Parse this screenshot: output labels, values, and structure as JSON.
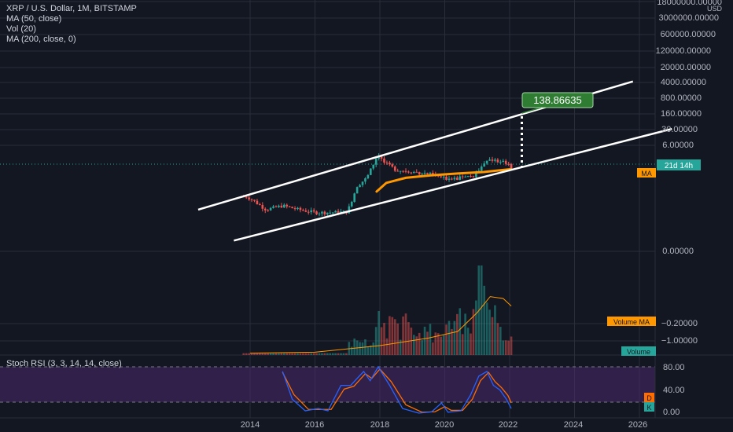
{
  "header": {
    "symbol": "XRP / U.S. Dollar, 1M, BITSTAMP",
    "indicators": [
      "MA (50, close)",
      "Vol (20)",
      "MA (200, close, 0)"
    ]
  },
  "price_axis": {
    "unit": "USD",
    "ticks": [
      "18000000.00000",
      "3000000.00000",
      "600000.00000",
      "120000.00000",
      "20000.00000",
      "4000.00000",
      "800.00000",
      "160.00000",
      "30.00000",
      "6.00000"
    ],
    "countdown": "21d 14h",
    "ma_tag": "MA"
  },
  "volume_axis": {
    "ticks": [
      "0.00000",
      "−0.20000",
      "−1.00000"
    ],
    "ma_tag": "Volume MA",
    "vol_tag": "Volume"
  },
  "stoch_panel": {
    "title": "Stoch RSI (3, 3, 14, 14, close)",
    "ticks": [
      "80.00",
      "40.00",
      "0.00"
    ],
    "d_tag": "D",
    "k_tag": "K"
  },
  "time_axis": {
    "ticks": [
      "2014",
      "2016",
      "2018",
      "2020",
      "2022",
      "2024",
      "2026"
    ]
  },
  "target_label": "138.86635",
  "colors": {
    "background": "#131722",
    "grid": "#2a2e39",
    "up_candle": "#26a69a",
    "down_candle": "#ef5350",
    "ma50": "#ff9800",
    "target_label_bg": "#2e7d32",
    "stoch_band": "#4a2a6b",
    "k_line": "#2962ff",
    "d_line": "#ff6d00"
  },
  "chart_data": {
    "type": "candlestick",
    "symbol": "XRP / U.S. Dollar",
    "interval": "1M",
    "exchange": "BITSTAMP",
    "y_scale": "log",
    "x_range": [
      2012.0,
      2027.0
    ],
    "last_price": 0.6,
    "price_series": [
      {
        "t": 2013.9,
        "close": 0.03
      },
      {
        "t": 2014.0,
        "close": 0.025
      },
      {
        "t": 2014.5,
        "close": 0.008
      },
      {
        "t": 2015.0,
        "close": 0.012
      },
      {
        "t": 2015.5,
        "close": 0.008
      },
      {
        "t": 2016.0,
        "close": 0.006
      },
      {
        "t": 2016.5,
        "close": 0.006
      },
      {
        "t": 2017.0,
        "close": 0.0065
      },
      {
        "t": 2017.3,
        "close": 0.09
      },
      {
        "t": 2017.6,
        "close": 0.2
      },
      {
        "t": 2017.95,
        "close": 2.3
      },
      {
        "t": 2018.1,
        "close": 1.0
      },
      {
        "t": 2018.5,
        "close": 0.45
      },
      {
        "t": 2019.0,
        "close": 0.37
      },
      {
        "t": 2019.5,
        "close": 0.3
      },
      {
        "t": 2020.0,
        "close": 0.19
      },
      {
        "t": 2020.5,
        "close": 0.2
      },
      {
        "t": 2020.9,
        "close": 0.25
      },
      {
        "t": 2021.3,
        "close": 1.2
      },
      {
        "t": 2021.7,
        "close": 1.1
      },
      {
        "t": 2021.95,
        "close": 0.83
      },
      {
        "t": 2022.05,
        "close": 0.6
      }
    ],
    "ma50": [
      {
        "t": 2017.9,
        "value": 0.05
      },
      {
        "t": 2018.2,
        "value": 0.12
      },
      {
        "t": 2018.8,
        "value": 0.2
      },
      {
        "t": 2019.6,
        "value": 0.26
      },
      {
        "t": 2020.4,
        "value": 0.31
      },
      {
        "t": 2021.2,
        "value": 0.36
      },
      {
        "t": 2022.05,
        "value": 0.48
      }
    ],
    "channel": {
      "upper": [
        {
          "t": 2012.4,
          "price": 0.008
        },
        {
          "t": 2025.8,
          "price": 3400
        }
      ],
      "lower": [
        {
          "t": 2013.5,
          "price": 0.00035
        },
        {
          "t": 2027.0,
          "price": 28
        }
      ]
    },
    "target": {
      "t": 2022.4,
      "price": 138.86635
    },
    "volume_ma": [
      {
        "t": 2014.0,
        "value": 0.02
      },
      {
        "t": 2016.0,
        "value": 0.03
      },
      {
        "t": 2018.0,
        "value": 0.1
      },
      {
        "t": 2019.5,
        "value": 0.18
      },
      {
        "t": 2020.4,
        "value": 0.25
      },
      {
        "t": 2021.0,
        "value": 0.45
      },
      {
        "t": 2021.4,
        "value": 0.62
      },
      {
        "t": 2021.8,
        "value": 0.6
      },
      {
        "t": 2022.05,
        "value": 0.52
      }
    ],
    "stoch_rsi": {
      "params": "3, 3, 14, 14, close",
      "ylim": [
        0,
        100
      ],
      "band": [
        20,
        80
      ],
      "k": [
        {
          "t": 2015.0,
          "v": 90
        },
        {
          "t": 2015.3,
          "v": 30
        },
        {
          "t": 2015.7,
          "v": 5
        },
        {
          "t": 2016.1,
          "v": 10
        },
        {
          "t": 2016.4,
          "v": 5
        },
        {
          "t": 2016.8,
          "v": 60
        },
        {
          "t": 2017.1,
          "v": 60
        },
        {
          "t": 2017.5,
          "v": 90
        },
        {
          "t": 2017.7,
          "v": 70
        },
        {
          "t": 2017.95,
          "v": 100
        },
        {
          "t": 2018.3,
          "v": 60
        },
        {
          "t": 2018.7,
          "v": 10
        },
        {
          "t": 2019.2,
          "v": 0
        },
        {
          "t": 2019.6,
          "v": 3
        },
        {
          "t": 2019.9,
          "v": 22
        },
        {
          "t": 2020.1,
          "v": 2
        },
        {
          "t": 2020.5,
          "v": 5
        },
        {
          "t": 2020.8,
          "v": 40
        },
        {
          "t": 2021.05,
          "v": 80
        },
        {
          "t": 2021.3,
          "v": 90
        },
        {
          "t": 2021.5,
          "v": 60
        },
        {
          "t": 2021.7,
          "v": 50
        },
        {
          "t": 2021.9,
          "v": 30
        },
        {
          "t": 2022.05,
          "v": 10
        }
      ],
      "d": [
        {
          "t": 2015.0,
          "v": 88
        },
        {
          "t": 2015.35,
          "v": 40
        },
        {
          "t": 2015.8,
          "v": 8
        },
        {
          "t": 2016.2,
          "v": 8
        },
        {
          "t": 2016.5,
          "v": 8
        },
        {
          "t": 2016.9,
          "v": 52
        },
        {
          "t": 2017.2,
          "v": 58
        },
        {
          "t": 2017.55,
          "v": 85
        },
        {
          "t": 2017.75,
          "v": 75
        },
        {
          "t": 2018.0,
          "v": 95
        },
        {
          "t": 2018.35,
          "v": 68
        },
        {
          "t": 2018.8,
          "v": 18
        },
        {
          "t": 2019.3,
          "v": 2
        },
        {
          "t": 2019.7,
          "v": 3
        },
        {
          "t": 2020.0,
          "v": 14
        },
        {
          "t": 2020.2,
          "v": 6
        },
        {
          "t": 2020.55,
          "v": 6
        },
        {
          "t": 2020.85,
          "v": 30
        },
        {
          "t": 2021.1,
          "v": 70
        },
        {
          "t": 2021.35,
          "v": 88
        },
        {
          "t": 2021.55,
          "v": 68
        },
        {
          "t": 2021.75,
          "v": 55
        },
        {
          "t": 2021.95,
          "v": 38
        },
        {
          "t": 2022.05,
          "v": 22
        }
      ]
    }
  }
}
